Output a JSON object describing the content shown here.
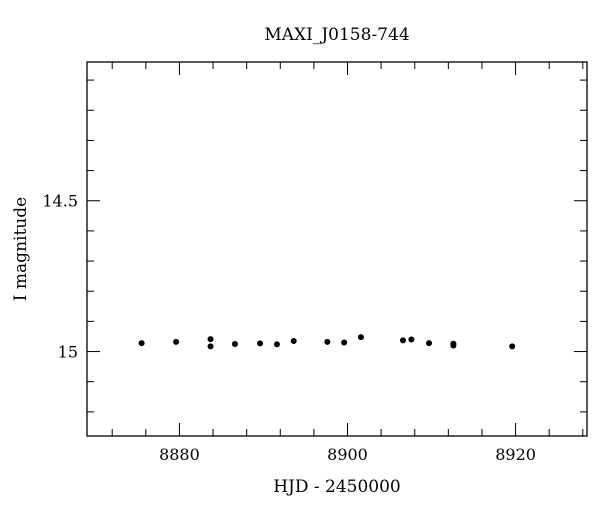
{
  "chart_data": {
    "type": "scatter",
    "title": "MAXI_J0158-744",
    "xlabel": "HJD - 2450000",
    "ylabel": "I magnitude",
    "xlim": [
      8869,
      8928.5
    ],
    "ylim": [
      15.28,
      14.04
    ],
    "y_inverted": true,
    "grid": false,
    "x_ticks": [
      8880,
      8900,
      8920
    ],
    "x_tick_labels": [
      "8880",
      "8900",
      "8920"
    ],
    "y_ticks": [
      14.5,
      15
    ],
    "y_tick_labels": [
      "14.5",
      "15"
    ],
    "x_minor_step": 4,
    "y_minor_step": 0.1,
    "series": [
      {
        "marker_color": "#000000",
        "points": [
          {
            "x": 8875.5,
            "y": 14.972
          },
          {
            "x": 8879.6,
            "y": 14.968
          },
          {
            "x": 8883.7,
            "y": 14.959
          },
          {
            "x": 8883.7,
            "y": 14.983
          },
          {
            "x": 8886.6,
            "y": 14.975
          },
          {
            "x": 8889.6,
            "y": 14.973
          },
          {
            "x": 8891.6,
            "y": 14.976
          },
          {
            "x": 8893.6,
            "y": 14.965
          },
          {
            "x": 8897.6,
            "y": 14.968
          },
          {
            "x": 8899.6,
            "y": 14.97
          },
          {
            "x": 8901.6,
            "y": 14.952
          },
          {
            "x": 8906.6,
            "y": 14.963
          },
          {
            "x": 8907.6,
            "y": 14.96
          },
          {
            "x": 8909.7,
            "y": 14.972
          },
          {
            "x": 8912.6,
            "y": 14.974
          },
          {
            "x": 8912.6,
            "y": 14.98
          },
          {
            "x": 8919.6,
            "y": 14.983
          }
        ]
      }
    ]
  }
}
